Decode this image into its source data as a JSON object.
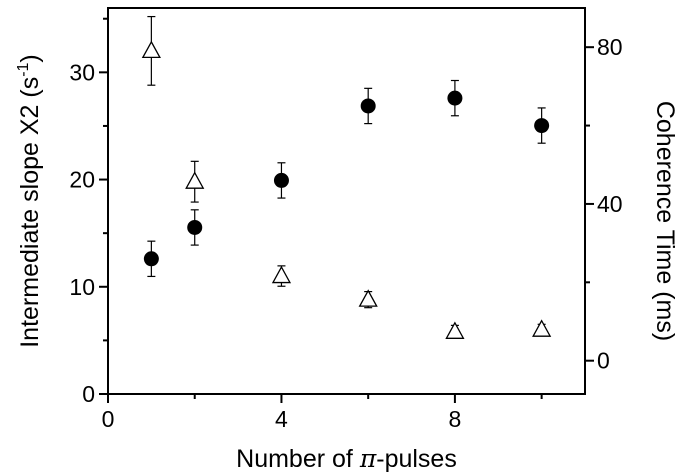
{
  "chart_data": {
    "type": "scatter",
    "xlabel": {
      "pre": "Number of ",
      "sym": "π",
      "post": "-pulses"
    },
    "ylabel_left": {
      "text": "Intermediate slope X2 (s",
      "sup": "-1",
      "close": ")"
    },
    "ylabel_right": "Coherence Time (ms)",
    "xlim": [
      0,
      11
    ],
    "ylim_left": [
      0,
      36
    ],
    "ylim_right": [
      -8.5,
      90
    ],
    "x_ticks": [
      0,
      4,
      8
    ],
    "x_tick_labels": [
      "0",
      "4",
      "8"
    ],
    "x_minor_ticks": [
      2,
      6,
      10
    ],
    "y_left_ticks": [
      0,
      10,
      20,
      30
    ],
    "y_left_tick_labels": [
      "0",
      "10",
      "20",
      "30"
    ],
    "y_left_minor_ticks": [
      5,
      15,
      25,
      35
    ],
    "y_right_ticks": [
      0,
      40,
      80
    ],
    "y_right_tick_labels": [
      "0",
      "40",
      "80"
    ],
    "y_right_minor_ticks": [
      20,
      60
    ],
    "grid": false,
    "legend": "none",
    "series": [
      {
        "marker": "filled-circle",
        "axis": "right",
        "color": "#000000",
        "x": [
          1,
          2,
          4,
          6,
          8,
          10
        ],
        "y": [
          26,
          34,
          46,
          65,
          67,
          60
        ],
        "err": [
          4.5,
          4.5,
          4.5,
          4.5,
          4.5,
          4.5
        ]
      },
      {
        "marker": "open-triangle",
        "axis": "left",
        "color": "#000000",
        "x": [
          1,
          2,
          4,
          6,
          8,
          10
        ],
        "y": [
          32,
          19.8,
          11,
          8.8,
          5.8,
          6
        ],
        "err": [
          3.2,
          1.9,
          0.95,
          0.75,
          0.6,
          0.5
        ]
      }
    ]
  }
}
